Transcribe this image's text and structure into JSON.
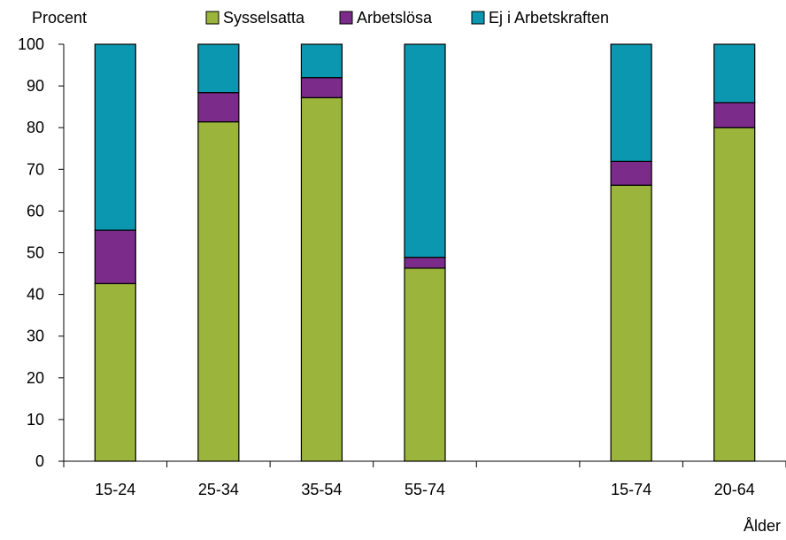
{
  "chart_data": {
    "type": "bar",
    "stacked": true,
    "ylabel": "Procent",
    "xlabel": "Ålder",
    "ylim": [
      0,
      100
    ],
    "yticks": [
      "0",
      "10",
      "20",
      "30",
      "40",
      "50",
      "60",
      "70",
      "80",
      "90",
      "100"
    ],
    "categories": [
      "15-24",
      "25-34",
      "35-54",
      "55-74",
      "",
      "15-74",
      "20-64"
    ],
    "series": [
      {
        "name": "Sysselsatta",
        "color": "#9BB53C",
        "values": [
          42.6,
          81.4,
          87.2,
          46.3,
          null,
          66.2,
          80.0
        ]
      },
      {
        "name": "Arbetslösa",
        "color": "#7B2C8A",
        "values": [
          12.8,
          7.0,
          4.8,
          2.6,
          null,
          5.7,
          6.0
        ]
      },
      {
        "name": "Ej i Arbetskraften",
        "color": "#0B97B0",
        "values": [
          44.6,
          11.6,
          8.0,
          51.1,
          null,
          28.1,
          14.0
        ]
      }
    ],
    "legend_position": "top"
  }
}
